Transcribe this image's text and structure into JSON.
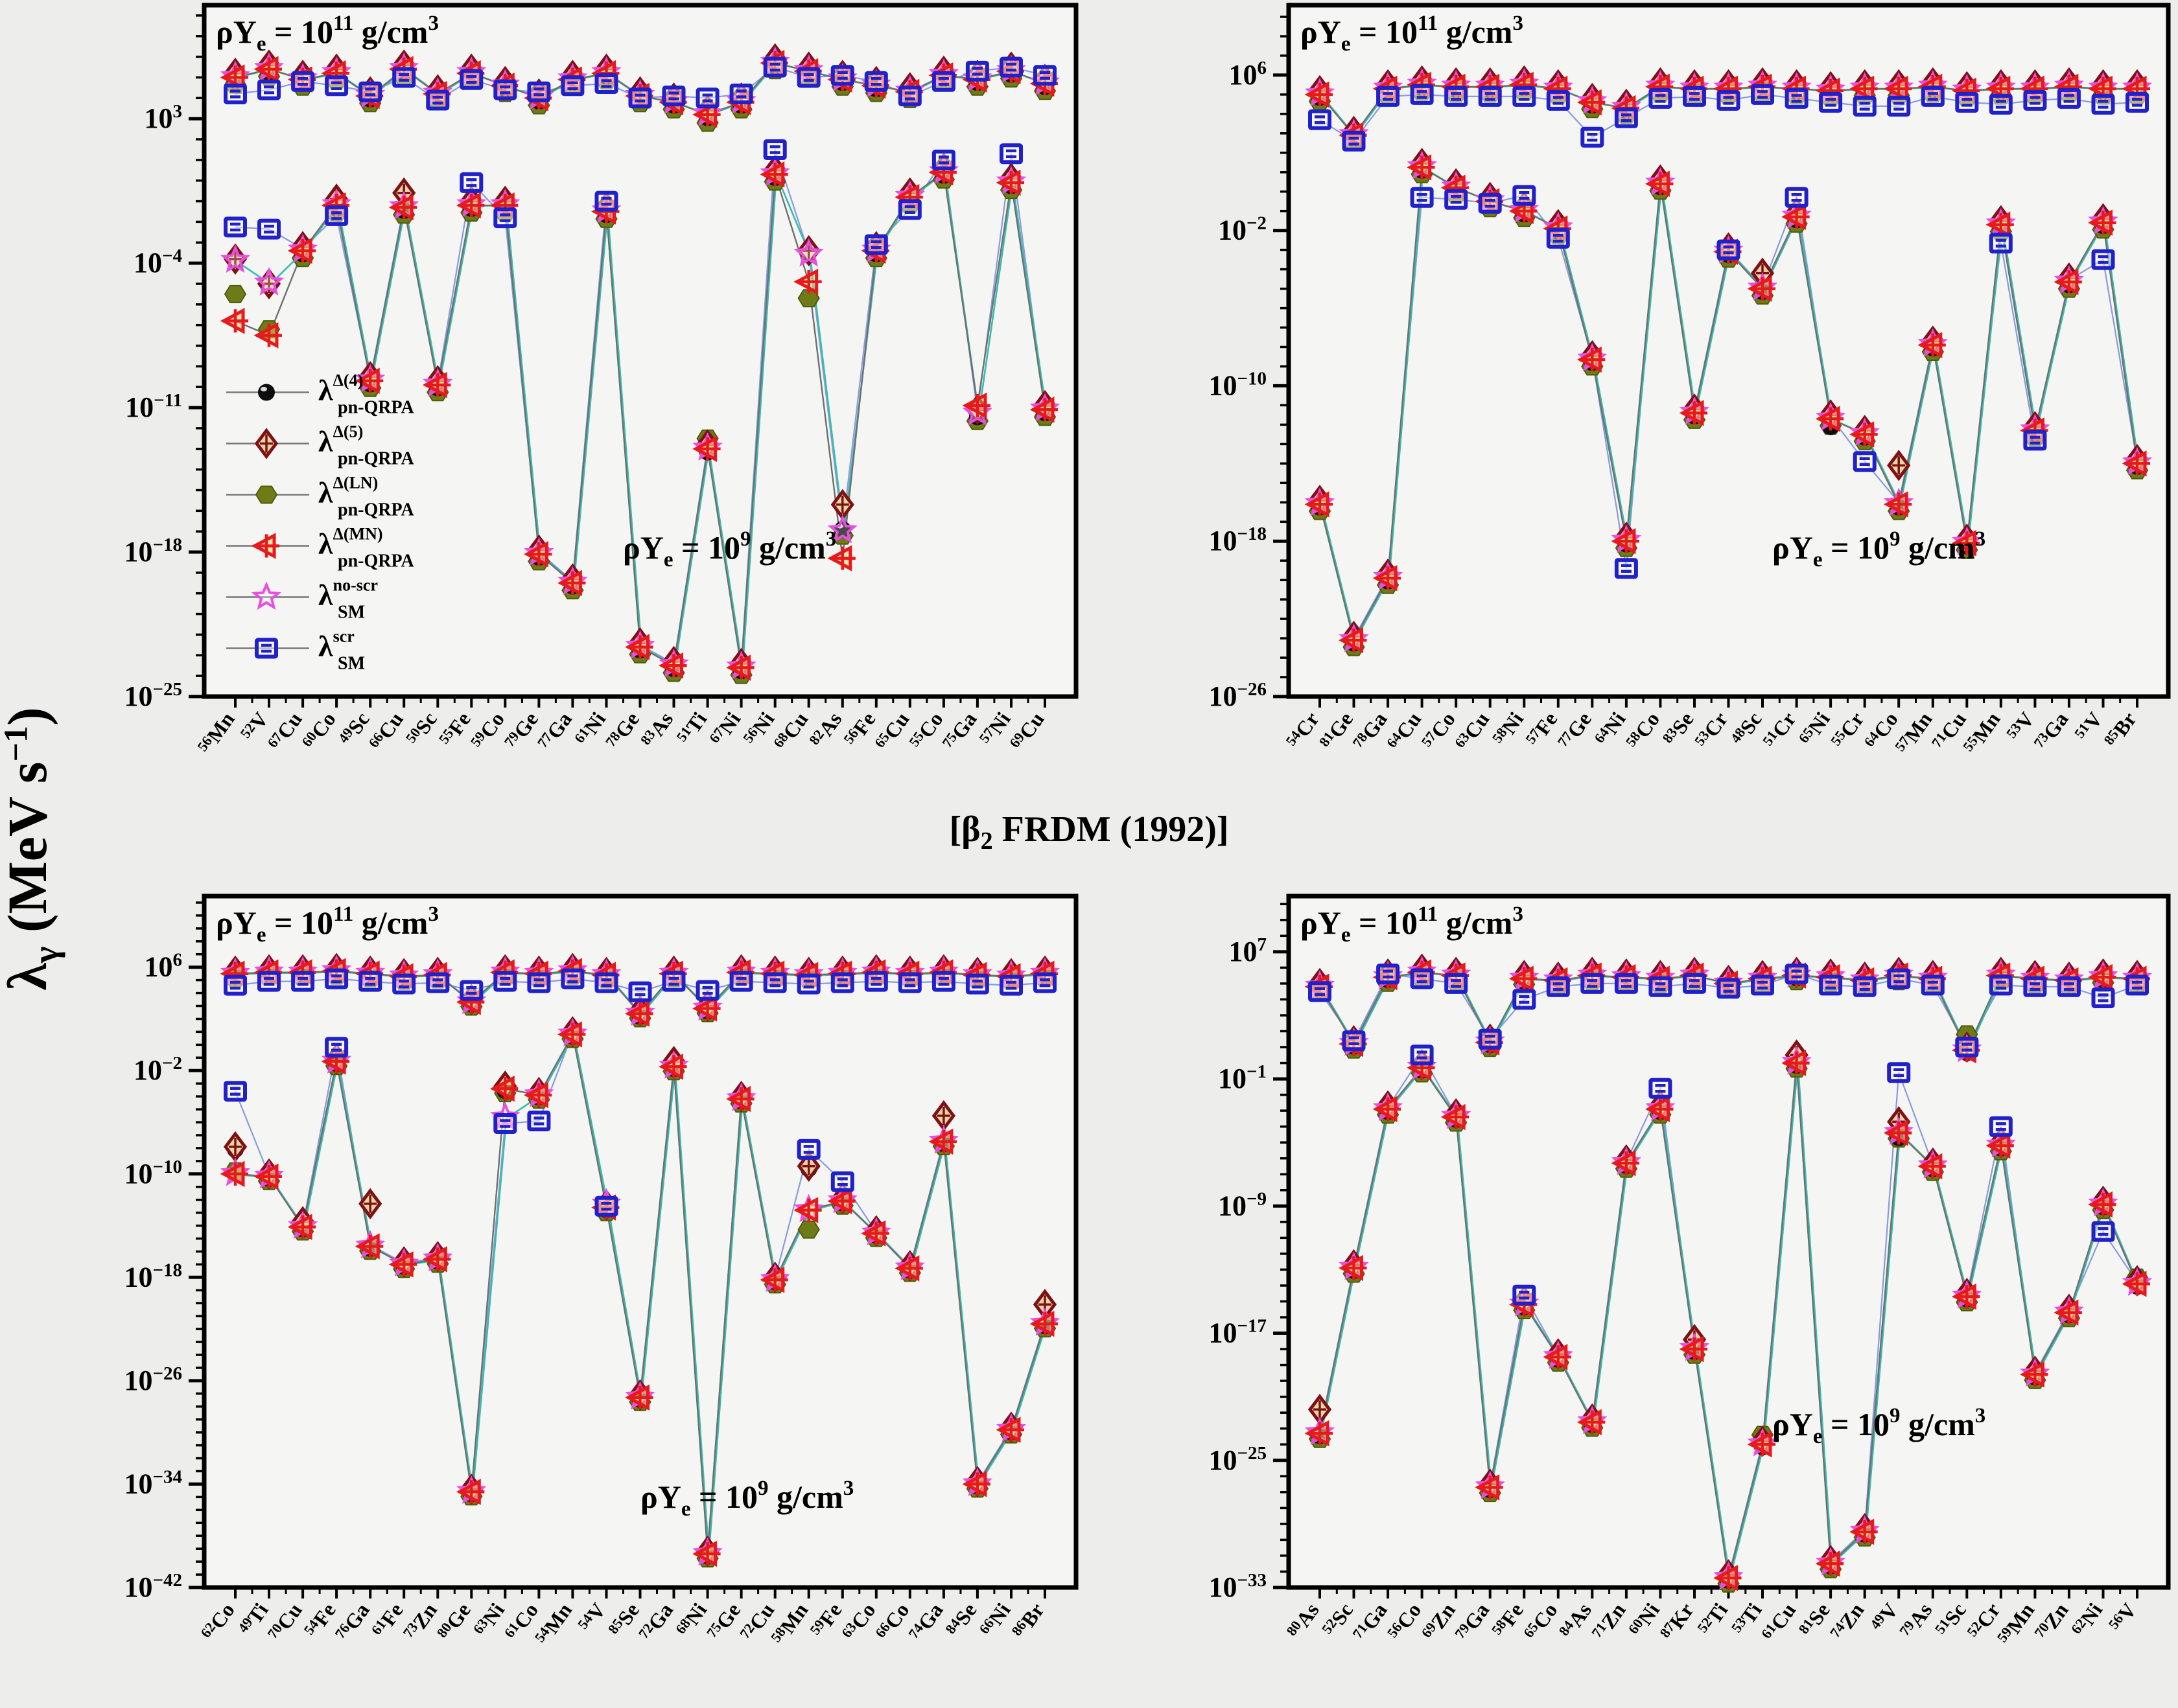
{
  "colors": {
    "d4": "#0d0d0d",
    "d5": "#7d1114",
    "d5_fill": "#e7d5a8",
    "ln": "#6e7b16",
    "mn": "#e8191c",
    "mn_fill": "#f3d35a",
    "noscr": "#e84fe0",
    "scr": "#2020cc",
    "line_qrpa": "#6f6f6f",
    "line_noscr": "#35bdad",
    "line_scr": "#8a9ade",
    "panel_bg": "#f5f5f3",
    "axis": "#000000"
  },
  "axis_title_y": {
    "sym": "λ",
    "sub": "γ",
    "mid": " (MeV s",
    "sup": "-1",
    "end": ")"
  },
  "axis_title_x": {
    "pre": "[β",
    "sub": "2",
    "post": " FRDM (1992)]"
  },
  "density_hi": {
    "pre": "ρY",
    "sub": "e",
    "mid": " = 10",
    "sup": "11",
    "unit": " g/cm",
    "usup": "3"
  },
  "density_lo": {
    "pre": "ρY",
    "sub": "e",
    "mid": " = 10",
    "sup": "9",
    "unit": " g/cm",
    "usup": "3"
  },
  "legend": [
    {
      "key": "d4",
      "sup": "Δ(4)",
      "sub": "pn-QRPA"
    },
    {
      "key": "d5",
      "sup": "Δ(5)",
      "sub": "pn-QRPA"
    },
    {
      "key": "ln",
      "sup": "Δ(LN)",
      "sub": "pn-QRPA"
    },
    {
      "key": "mn",
      "sup": "Δ(MN)",
      "sub": "pn-QRPA"
    },
    {
      "key": "noscr",
      "sup": "no-scr",
      "sub": "SM"
    },
    {
      "key": "scr",
      "sup": "scr",
      "sub": "SM"
    }
  ],
  "chart_data": {
    "type": "line",
    "y_log10": true,
    "note": "values are log10 of lambda_gamma in MeV/s; hi = rhoYe 1e11 g/cm3, lo = rhoYe 1e9 g/cm3",
    "panels": [
      {
        "id": "top-left",
        "show_legend": true,
        "ylim": [
          -25,
          8.5
        ],
        "ytick_exps": [
          3,
          -4,
          -11,
          -18,
          -25
        ],
        "lo_text_pos": [
          0.48,
          0.8
        ],
        "isotopes": [
          "56Mn",
          "52V",
          "67Cu",
          "60Co",
          "49Sc",
          "66Cu",
          "50Sc",
          "55Fe",
          "59Co",
          "79Ge",
          "77Ga",
          "61Ni",
          "78Ge",
          "83As",
          "51Ti",
          "67Ni",
          "56Ni",
          "68Cu",
          "82As",
          "56Fe",
          "65Cu",
          "55Co",
          "75Ga",
          "57Ni",
          "69Cu"
        ],
        "hi": {
          "qrpa": [
            5.0,
            5.4,
            4.9,
            5.2,
            4.1,
            5.4,
            4.2,
            5.2,
            4.6,
            4.0,
            4.9,
            5.2,
            4.1,
            3.8,
            3.2,
            3.8,
            5.7,
            5.3,
            4.9,
            4.6,
            4.3,
            5.1,
            4.9,
            5.3,
            4.7
          ],
          "sm": [
            4.2,
            4.4,
            4.8,
            4.6,
            4.3,
            5.0,
            3.9,
            4.9,
            4.4,
            4.3,
            4.6,
            4.7,
            4.0,
            4.1,
            4.0,
            4.2,
            5.5,
            5.0,
            5.1,
            4.8,
            4.1,
            4.8,
            5.3,
            5.5,
            5.1
          ],
          "spread": {
            "14": {
              "ln": 2.8
            }
          }
        },
        "lo": {
          "qrpa": [
            -3.9,
            -5.0,
            -3.4,
            -1.2,
            -9.7,
            -1.3,
            -9.9,
            -1.2,
            -1.2,
            -18.1,
            -19.5,
            -1.5,
            -22.6,
            -23.5,
            -13.0,
            -23.6,
            0.3,
            -3.6,
            -17.0,
            -3.4,
            -0.8,
            0.4,
            -11.3,
            -0.1,
            -11.1
          ],
          "sm": [
            -2.25,
            -2.35,
            null,
            -1.7,
            null,
            null,
            null,
            -0.1,
            -1.8,
            null,
            null,
            -1.0,
            null,
            null,
            null,
            null,
            1.5,
            null,
            null,
            -3.1,
            -1.4,
            1.0,
            null,
            1.3,
            null
          ],
          "spread": {
            "0": {
              "d4": -3.9,
              "d5": -3.8,
              "ln": -5.5,
              "mn": -6.8
            },
            "1": {
              "d4": -5.1,
              "d5": -5.0,
              "ln": -7.2,
              "mn": -7.5
            },
            "3": {
              "d5": -0.9
            },
            "5": {
              "d5": -0.6
            },
            "14": {
              "ln": -12.5
            },
            "17": {
              "d4": -3.4,
              "d5": -3.4,
              "ln": -5.7,
              "mn": -4.9
            },
            "18": {
              "d4": -16.9,
              "d5": -15.7,
              "ln": -17.2,
              "mn": -18.3
            },
            "22": {
              "mn": -10.9
            }
          }
        }
      },
      {
        "id": "top-right",
        "show_legend": false,
        "ylim": [
          -26,
          9.6
        ],
        "ytick_exps": [
          6,
          -2,
          -10,
          -18,
          -26
        ],
        "lo_text_pos": [
          0.55,
          0.8
        ],
        "isotopes": [
          "54Cr",
          "81Ge",
          "78Ga",
          "64Cu",
          "57Co",
          "63Cu",
          "58Ni",
          "57Fe",
          "77Ge",
          "64Ni",
          "58Co",
          "83Se",
          "53Cr",
          "48Sc",
          "51Cr",
          "65Ni",
          "55Cr",
          "64Co",
          "57Mn",
          "71Cu",
          "55Mn",
          "53V",
          "73Ga",
          "51V",
          "85Br"
        ],
        "hi": {
          "qrpa": [
            5.0,
            2.9,
            5.3,
            5.5,
            5.4,
            5.4,
            5.5,
            5.3,
            4.6,
            4.3,
            5.4,
            5.3,
            5.3,
            5.4,
            5.3,
            5.2,
            5.3,
            5.3,
            5.4,
            5.2,
            5.3,
            5.3,
            5.4,
            5.3,
            5.3
          ],
          "sm": [
            3.7,
            2.6,
            4.9,
            5.0,
            4.9,
            4.9,
            4.9,
            4.7,
            2.8,
            3.8,
            4.8,
            4.9,
            4.7,
            5.0,
            4.8,
            4.6,
            4.4,
            4.4,
            4.9,
            4.6,
            4.5,
            4.7,
            4.8,
            4.5,
            4.6
          ],
          "spread": {}
        },
        "lo": {
          "qrpa": [
            -16.1,
            -23.1,
            -19.9,
            1.25,
            0.2,
            -0.5,
            -1.0,
            -1.9,
            -8.65,
            -18.0,
            0.4,
            -11.4,
            -3.1,
            -5.0,
            -1.3,
            -11.7,
            -12.5,
            -16.1,
            -7.9,
            -18.1,
            -1.7,
            -12.3,
            -4.65,
            -1.6,
            -14.0
          ],
          "sm": [
            null,
            null,
            null,
            -0.3,
            -0.4,
            -0.6,
            -0.2,
            -2.4,
            null,
            -19.4,
            null,
            null,
            -3.0,
            null,
            -0.3,
            null,
            -13.9,
            null,
            null,
            null,
            -2.65,
            -12.8,
            null,
            -3.5,
            null
          ],
          "spread": {
            "13": {
              "d5": -4.2
            },
            "15": {
              "d4": -12.1
            },
            "17": {
              "d5": -14.1
            }
          }
        }
      },
      {
        "id": "bottom-left",
        "show_legend": false,
        "ylim": [
          -42,
          11.5
        ],
        "ytick_exps": [
          6,
          -2,
          -10,
          -18,
          -26,
          -34,
          -42
        ],
        "lo_text_pos": [
          0.5,
          0.885
        ],
        "isotopes": [
          "62Co",
          "49Ti",
          "70Cu",
          "54Fe",
          "76Ga",
          "61Fe",
          "73Zn",
          "80Ge",
          "63Ni",
          "61Co",
          "54Mn",
          "54V",
          "85Se",
          "72Ga",
          "68Ni",
          "75Ge",
          "72Cu",
          "58Mn",
          "59Fe",
          "63Co",
          "66Co",
          "74Ga",
          "84Se",
          "66Ni",
          "86Br"
        ],
        "hi": {
          "qrpa": [
            5.5,
            5.6,
            5.6,
            5.7,
            5.5,
            5.3,
            5.4,
            3.3,
            5.6,
            5.5,
            5.7,
            5.4,
            2.4,
            5.5,
            2.8,
            5.6,
            5.5,
            5.4,
            5.5,
            5.6,
            5.5,
            5.6,
            5.4,
            5.3,
            5.5
          ],
          "sm": [
            4.6,
            4.9,
            4.9,
            5.1,
            4.9,
            4.7,
            4.8,
            4.2,
            4.9,
            4.8,
            5.1,
            4.8,
            4.1,
            4.9,
            4.2,
            4.9,
            4.8,
            4.7,
            4.8,
            4.9,
            4.8,
            4.9,
            4.7,
            4.6,
            4.8
          ],
          "spread": {
            "12": {
              "d4": 2.2
            },
            "14": {
              "d4": 2.6
            }
          }
        },
        "lo": {
          "qrpa": [
            -10.0,
            -10.2,
            -14.1,
            -1.3,
            -15.6,
            -17.0,
            -16.6,
            -34.6,
            -3.4,
            -3.9,
            0.8,
            -12.6,
            -27.3,
            -1.7,
            -39.4,
            -4.2,
            -18.2,
            -12.8,
            -12.1,
            -14.6,
            -17.3,
            -7.5,
            -34.0,
            -29.8,
            -21.6
          ],
          "sm": [
            -3.6,
            null,
            null,
            -0.2,
            null,
            null,
            null,
            null,
            -6.1,
            -5.9,
            null,
            -12.5,
            null,
            null,
            null,
            null,
            null,
            -8.1,
            -10.6,
            null,
            null,
            null,
            null,
            null,
            null
          ],
          "spread": {
            "0": {
              "d5": -7.9,
              "d4": -8.1,
              "ln": -9.8
            },
            "2": {
              "d5": -13.7
            },
            "4": {
              "d5": -12.3
            },
            "8": {
              "noscr": -5.6
            },
            "11": {
              "noscr": -12.3
            },
            "13": {
              "d5": -1.3
            },
            "17": {
              "d5": -9.4,
              "d4": -9.6,
              "ln": -14.3
            },
            "21": {
              "d5": -5.5
            },
            "24": {
              "d5": -20.1
            }
          }
        }
      },
      {
        "id": "bottom-right",
        "show_legend": false,
        "ylim": [
          -33,
          10.5
        ],
        "ytick_exps": [
          7,
          -1,
          -9,
          -17,
          -25,
          -33
        ],
        "lo_text_pos": [
          0.55,
          0.78
        ],
        "isotopes": [
          "80As",
          "52Sc",
          "71Ga",
          "56Co",
          "69Zn",
          "79Ga",
          "58Fe",
          "65Co",
          "84As",
          "71Zn",
          "60Ni",
          "87Kr",
          "52Ti",
          "53Ti",
          "61Cu",
          "81Se",
          "74Zn",
          "49V",
          "79As",
          "51Sc",
          "52Cr",
          "59Mn",
          "70Zn",
          "62Ni",
          "56V"
        ],
        "hi": {
          "qrpa": [
            4.8,
            1.2,
            5.4,
            5.7,
            5.5,
            1.3,
            5.3,
            5.2,
            5.5,
            5.4,
            5.3,
            5.5,
            5.0,
            5.3,
            5.5,
            5.4,
            5.2,
            5.5,
            5.3,
            0.8,
            5.5,
            5.3,
            5.2,
            5.4,
            5.3
          ],
          "sm": [
            4.5,
            1.4,
            5.6,
            5.3,
            5.0,
            1.5,
            4.0,
            4.8,
            5.0,
            5.0,
            4.8,
            5.0,
            4.7,
            4.9,
            5.6,
            4.9,
            4.8,
            5.3,
            4.9,
            1.0,
            4.9,
            4.8,
            4.8,
            4.1,
            4.9
          ],
          "spread": {
            "19": {
              "ln": 1.8
            }
          }
        },
        "lo": {
          "qrpa": [
            -23.3,
            -12.9,
            -2.9,
            -0.3,
            -3.4,
            -26.7,
            -15.2,
            -18.5,
            -22.6,
            -6.3,
            -2.9,
            -18.0,
            -32.4,
            -24.0,
            0.0,
            -31.5,
            -29.5,
            -4.4,
            -6.5,
            -14.7,
            -5.2,
            -19.6,
            -15.7,
            -8.9,
            -13.9
          ],
          "sm": [
            null,
            null,
            null,
            0.5,
            null,
            null,
            -14.6,
            null,
            null,
            null,
            -1.6,
            null,
            null,
            null,
            null,
            null,
            null,
            -0.6,
            null,
            null,
            -4.0,
            null,
            null,
            -10.6,
            null
          ],
          "spread": {
            "0": {
              "d5": -21.8
            },
            "11": {
              "d5": -17.4
            },
            "13": {
              "ln": -23.4
            },
            "14": {
              "d5": 0.5
            },
            "17": {
              "d5": -3.7,
              "d4": -4.7
            },
            "24": {
              "ln": -13.5
            }
          }
        }
      }
    ]
  }
}
